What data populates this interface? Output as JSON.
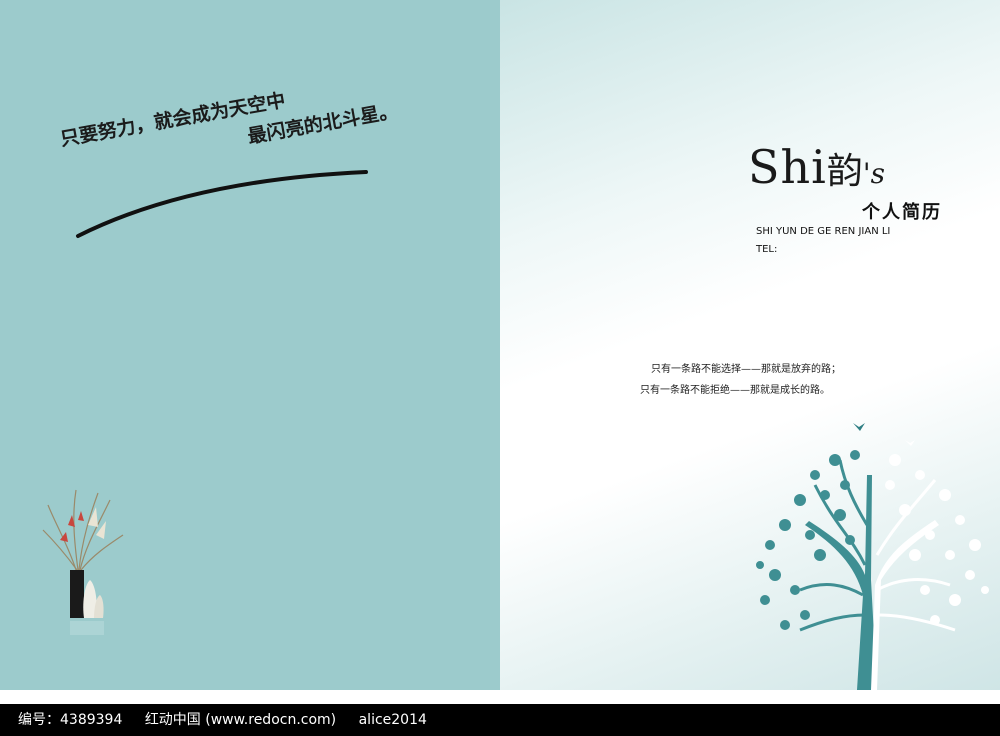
{
  "left": {
    "slogan_line1": "只要努力，就会成为天空中",
    "slogan_line2": "最闪亮的北斗星。"
  },
  "right": {
    "title_latin": "Shi",
    "title_han": "韵",
    "title_suffix": "'s",
    "subtitle": "个人简历",
    "pinyin": "SHI YUN DE GE REN JIAN LI",
    "tel_label": "TEL:",
    "quote_line1": "只有一条路不能选择——那就是放弃的路；",
    "quote_line2": "只有一条路不能拒绝——那就是成长的路。"
  },
  "footer": {
    "id_text": "编号：4389394",
    "site_text": "红动中国 (www.redocn.com)",
    "author_text": "alice2014"
  },
  "colors": {
    "left_page": "#9ccbcc",
    "tree_teal": "#3f8f93",
    "footer_bg": "#000000"
  },
  "icons": [
    "swoosh-stroke",
    "vase-with-branches",
    "tree-illustration",
    "bird-icon"
  ]
}
